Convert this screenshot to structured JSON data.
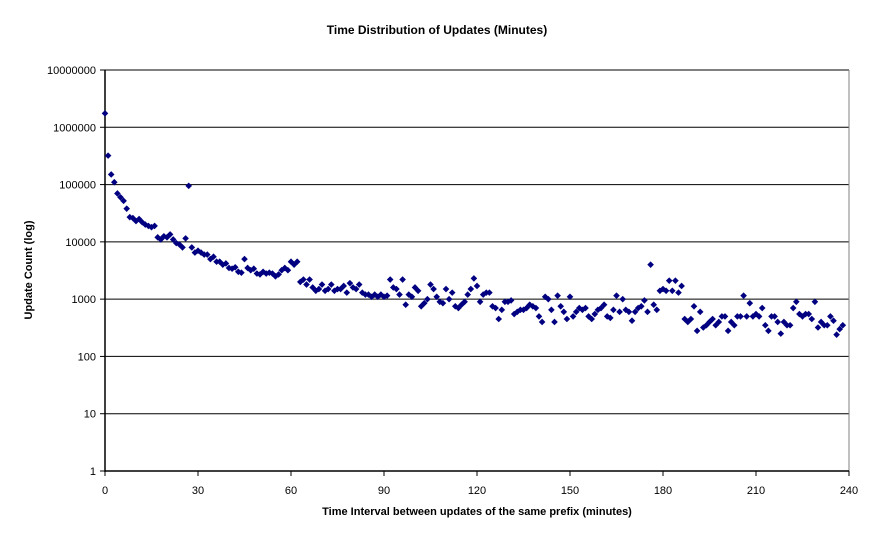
{
  "chart_data": {
    "type": "scatter",
    "title": "Time Distribution of Updates (Minutes)",
    "xlabel": "Time Interval between updates of the same prefix (minutes)",
    "ylabel": "Update Count (log)",
    "xlim": [
      0,
      240
    ],
    "ylim": [
      1,
      10000000
    ],
    "yscale": "log",
    "grid": "horizontal",
    "legend": "none",
    "marker_color": "#000080",
    "x_ticks": [
      "0",
      "30",
      "60",
      "90",
      "120",
      "150",
      "180",
      "210",
      "240"
    ],
    "y_ticks": [
      "1",
      "10",
      "100",
      "1000",
      "10000",
      "100000",
      "1000000",
      "10000000"
    ],
    "y": [
      1750000,
      320000,
      150000,
      110000,
      70000,
      60000,
      52000,
      38000,
      27000,
      26000,
      23000,
      25000,
      22000,
      20000,
      19000,
      18000,
      19000,
      12000,
      11000,
      12500,
      12000,
      13500,
      11000,
      9500,
      9000,
      8000,
      11500,
      95000,
      8000,
      6500,
      7000,
      6500,
      6000,
      6000,
      5000,
      5500,
      4500,
      4500,
      4000,
      4200,
      3500,
      3400,
      3600,
      3000,
      2900,
      5000,
      3500,
      3200,
      3400,
      2800,
      2700,
      3000,
      2800,
      2900,
      2800,
      2500,
      2700,
      3200,
      3500,
      3200,
      4500,
      4000,
      4500,
      2000,
      2200,
      1800,
      2200,
      1600,
      1400,
      1500,
      1800,
      1400,
      1500,
      1800,
      1400,
      1500,
      1500,
      1700,
      1300,
      1900,
      1600,
      1500,
      1800,
      1300,
      1200,
      1200,
      1100,
      1200,
      1100,
      1200,
      1100,
      1150,
      2200,
      1600,
      1500,
      1200,
      2200,
      800,
      1200,
      1100,
      1600,
      1400,
      750,
      850,
      1000,
      1800,
      1500,
      1100,
      900,
      850,
      1500,
      1000,
      1300,
      750,
      700,
      800,
      900,
      1200,
      1500,
      2300,
      1700,
      900,
      1200,
      1300,
      1300,
      750,
      700,
      450,
      650,
      900,
      900,
      950,
      550,
      600,
      650,
      650,
      700,
      800,
      750,
      700,
      500,
      400,
      1100,
      1000,
      650,
      400,
      1150,
      750,
      600,
      450,
      1100,
      500,
      600,
      700,
      650,
      700,
      500,
      450,
      550,
      650,
      700,
      800,
      500,
      470,
      650,
      1150,
      600,
      1000,
      650,
      600,
      420,
      600,
      700,
      750,
      950,
      600,
      4000,
      800,
      650,
      1400,
      1500,
      1400,
      2100,
      1400,
      2100,
      1300,
      1700,
      450,
      400,
      450,
      750,
      280,
      600,
      320,
      350,
      400,
      450,
      350,
      400,
      500,
      500,
      280,
      400,
      350,
      500,
      500,
      1150,
      500,
      850,
      500,
      550,
      500,
      700,
      350,
      280,
      500,
      500,
      400,
      250,
      400,
      350,
      350,
      700,
      900,
      550,
      500,
      550,
      550,
      450,
      900,
      320,
      400,
      350,
      350,
      500,
      420,
      240,
      300,
      350
    ]
  }
}
